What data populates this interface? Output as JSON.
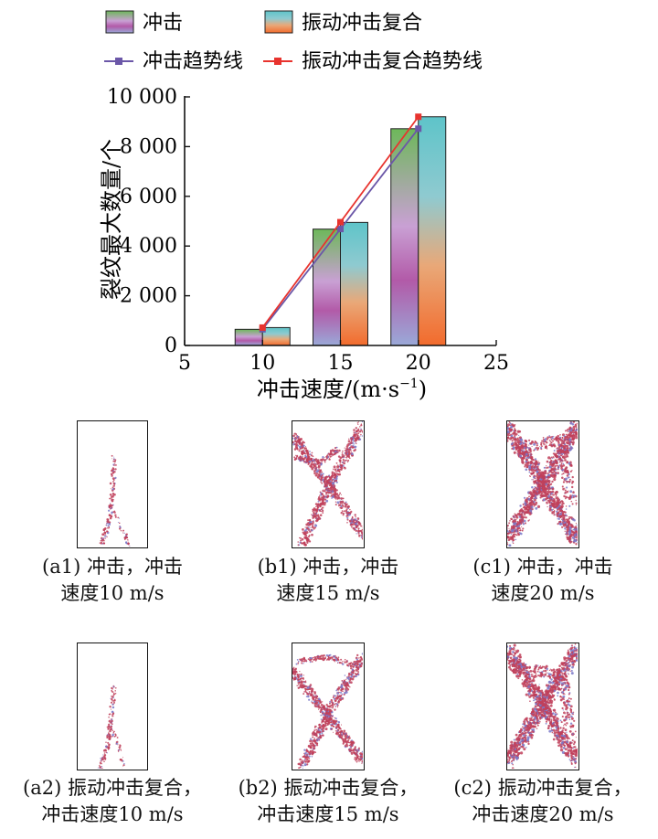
{
  "chart_data": {
    "type": "bar",
    "ylabel": "裂纹最大数量/个",
    "xlabel": "冲击速度/(m·s",
    "xlabel_sup": "−1",
    "xlabel_tail": ")",
    "x_ticks": [
      "5",
      "10",
      "15",
      "20",
      "25"
    ],
    "y_ticks": [
      "0",
      "2 000",
      "4 000",
      "6 000",
      "8 000",
      "10 000"
    ],
    "xlim": [
      5,
      25
    ],
    "ylim": [
      0,
      10000
    ],
    "categories": [
      10,
      15,
      20
    ],
    "series": [
      {
        "name": "冲击",
        "values": [
          650,
          4680,
          8720
        ],
        "gradient": [
          "#9aa9d8",
          "#b25aa8",
          "#c9a0d4",
          "#6db85a"
        ]
      },
      {
        "name": "振动冲击复合",
        "values": [
          720,
          4950,
          9200
        ],
        "gradient": [
          "#f26b2d",
          "#e9b080",
          "#7fcbd3",
          "#5ec4c9"
        ]
      }
    ],
    "trend_lines": [
      {
        "name": "冲击趋势线",
        "x": [
          10,
          20
        ],
        "y": [
          650,
          8720
        ],
        "color": "#6b57a8"
      },
      {
        "name": "振动冲击复合趋势线",
        "x": [
          10,
          20
        ],
        "y": [
          720,
          9200
        ],
        "color": "#e8332e"
      }
    ],
    "legend_position": "top"
  },
  "captions": [
    {
      "line1": "(a1) 冲击，冲击",
      "line2": "速度10 m/s"
    },
    {
      "line1": "(b1) 冲击，冲击",
      "line2": "速度15 m/s"
    },
    {
      "line1": "(c1) 冲击，冲击",
      "line2": "速度20 m/s"
    },
    {
      "line1": "(a2) 振动冲击复合，",
      "line2": "冲击速度10 m/s"
    },
    {
      "line1": "(b2) 振动冲击复合，",
      "line2": "冲击速度15 m/s"
    },
    {
      "line1": "(c2) 振动冲击复合，",
      "line2": "冲击速度20 m/s"
    }
  ],
  "colors": {
    "crack": "#c0405a",
    "crack_light": "#7a78c8"
  }
}
